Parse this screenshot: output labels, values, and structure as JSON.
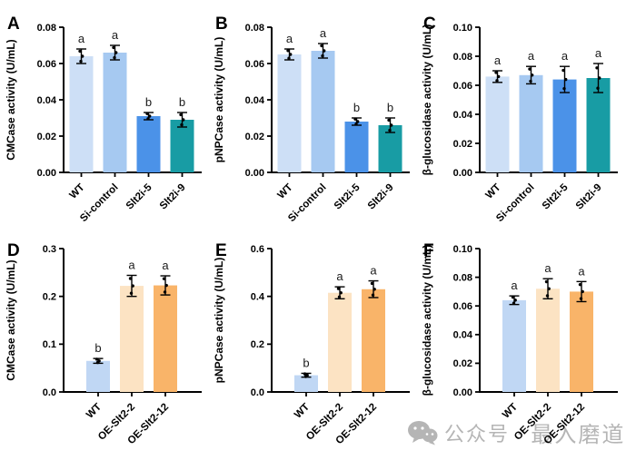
{
  "chart_data": [
    {
      "panel": "A",
      "type": "bar",
      "ylabel": "CMCase activity (U/mL)",
      "categories": [
        "WT",
        "Si-control",
        "Slt2i-5",
        "Slt2i-9"
      ],
      "values": [
        0.064,
        0.066,
        0.031,
        0.029
      ],
      "errors": [
        0.004,
        0.004,
        0.002,
        0.004
      ],
      "sig_letters": [
        "a",
        "a",
        "b",
        "b"
      ],
      "bar_colors": [
        "#cddff6",
        "#a6c9f1",
        "#4b92e8",
        "#189ca4"
      ],
      "ylim": [
        0,
        0.08
      ],
      "yticks": [
        "0.00",
        "0.02",
        "0.04",
        "0.06",
        "0.08"
      ],
      "grid": false,
      "legend": "none"
    },
    {
      "panel": "B",
      "type": "bar",
      "ylabel": "pNPCase activity (U/mL)",
      "categories": [
        "WT",
        "Si-control",
        "Slt2i-5",
        "Slt2i-9"
      ],
      "values": [
        0.065,
        0.067,
        0.028,
        0.026
      ],
      "errors": [
        0.003,
        0.004,
        0.002,
        0.004
      ],
      "sig_letters": [
        "a",
        "a",
        "b",
        "b"
      ],
      "bar_colors": [
        "#cddff6",
        "#a6c9f1",
        "#4b92e8",
        "#189ca4"
      ],
      "ylim": [
        0,
        0.08
      ],
      "yticks": [
        "0.00",
        "0.02",
        "0.04",
        "0.06",
        "0.08"
      ],
      "grid": false,
      "legend": "none"
    },
    {
      "panel": "C",
      "type": "bar",
      "ylabel": "β-glucosidase activity (U/mL)",
      "categories": [
        "WT",
        "Si-control",
        "Slt2i-5",
        "Slt2i-9"
      ],
      "values": [
        0.066,
        0.067,
        0.064,
        0.065
      ],
      "errors": [
        0.004,
        0.006,
        0.009,
        0.01
      ],
      "sig_letters": [
        "a",
        "a",
        "a",
        "a"
      ],
      "bar_colors": [
        "#cddff6",
        "#a6c9f1",
        "#4b92e8",
        "#189ca4"
      ],
      "ylim": [
        0,
        0.1
      ],
      "yticks": [
        "0.00",
        "0.02",
        "0.04",
        "0.06",
        "0.08",
        "0.10"
      ],
      "grid": false,
      "legend": "none"
    },
    {
      "panel": "D",
      "type": "bar",
      "ylabel": "CMCase activity (U/mL)",
      "categories": [
        "WT",
        "OE-Slt2-2",
        "OE-Slt2-12"
      ],
      "values": [
        0.065,
        0.222,
        0.223
      ],
      "errors": [
        0.005,
        0.022,
        0.02
      ],
      "sig_letters": [
        "b",
        "a",
        "a"
      ],
      "bar_colors": [
        "#c0d7f4",
        "#fce3c3",
        "#f9b469"
      ],
      "ylim": [
        0,
        0.3
      ],
      "yticks": [
        "0.0",
        "0.1",
        "0.2",
        "0.3"
      ],
      "grid": false,
      "legend": "none"
    },
    {
      "panel": "E",
      "type": "bar",
      "ylabel": "pNPCase activity (U/mL)",
      "categories": [
        "WT",
        "OE-Slt2-2",
        "OE-Slt2-12"
      ],
      "values": [
        0.07,
        0.415,
        0.43
      ],
      "errors": [
        0.008,
        0.025,
        0.035
      ],
      "sig_letters": [
        "b",
        "a",
        "a"
      ],
      "bar_colors": [
        "#c0d7f4",
        "#fce3c3",
        "#f9b469"
      ],
      "ylim": [
        0,
        0.6
      ],
      "yticks": [
        "0.0",
        "0.2",
        "0.4",
        "0.6"
      ],
      "grid": false,
      "legend": "none"
    },
    {
      "panel": "F",
      "type": "bar",
      "ylabel": "β-glucosidase activity (U/mL)",
      "categories": [
        "WT",
        "OE-Slt2-2",
        "OE-Slt2-12"
      ],
      "values": [
        0.064,
        0.072,
        0.07
      ],
      "errors": [
        0.003,
        0.007,
        0.007
      ],
      "sig_letters": [
        "a",
        "a",
        "a"
      ],
      "bar_colors": [
        "#c0d7f4",
        "#fce3c3",
        "#f9b469"
      ],
      "ylim": [
        0,
        0.1
      ],
      "yticks": [
        "0.00",
        "0.02",
        "0.04",
        "0.06",
        "0.08",
        "0.10"
      ],
      "grid": false,
      "legend": "none"
    }
  ],
  "watermark": {
    "platform_label": "公众号",
    "separator": "·",
    "account_name": "最入磨道",
    "icon": "wechat-icon",
    "color": "#b5b5b5"
  }
}
